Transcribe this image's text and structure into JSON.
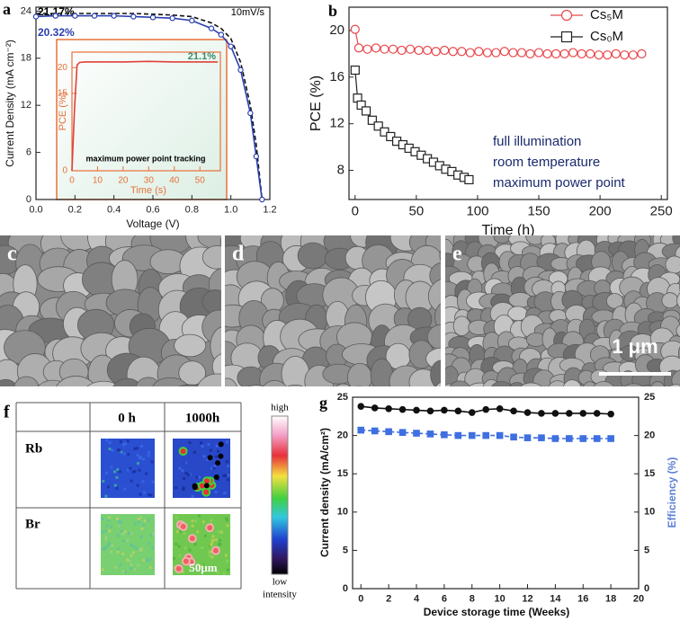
{
  "chart_data": [
    {
      "type": "line",
      "panel_label": "a",
      "xlabel": "Voltage (V)",
      "ylabel": "Current Density (mA cm⁻²)",
      "annotations": [
        "21.17%",
        "20.32%",
        "10mV/s"
      ],
      "x": [
        0,
        0.1,
        0.2,
        0.3,
        0.4,
        0.5,
        0.6,
        0.7,
        0.8,
        0.9,
        0.95,
        1.0,
        1.05,
        1.1,
        1.13,
        1.16
      ],
      "series": [
        {
          "color": "#111111",
          "dashed": true,
          "marker": "none",
          "values": [
            23.7,
            23.7,
            23.7,
            23.7,
            23.7,
            23.7,
            23.6,
            23.5,
            23.3,
            22.5,
            21.8,
            20.5,
            17.5,
            12,
            7,
            0
          ]
        },
        {
          "color": "#2a3fb0",
          "dashed": false,
          "marker": "circle",
          "open": true,
          "values": [
            23.3,
            23.4,
            23.4,
            23.4,
            23.4,
            23.3,
            23.2,
            23.1,
            22.8,
            21.8,
            21.0,
            19.5,
            16.5,
            11,
            5.5,
            0
          ]
        }
      ],
      "xlim": [
        0,
        1.2
      ],
      "xticks": [
        {
          "value": 0,
          "label": "0.0"
        },
        0.2,
        0.4,
        0.6,
        0.8,
        {
          "value": 1,
          "label": "1.0"
        },
        1.2
      ],
      "ylim": [
        0,
        24.5
      ],
      "yticks": [
        0,
        6,
        12,
        18,
        24
      ]
    },
    {
      "type": "line",
      "xlabel": "Time (s)",
      "ylabel": "PCE (%)",
      "axis_color": "#e8703a",
      "annotations": [
        "21.1%",
        "maximum power point tracking"
      ],
      "x": [
        0,
        1,
        2,
        3,
        5,
        10,
        20,
        30,
        40,
        50,
        57
      ],
      "series": [
        {
          "color": "#e0403a",
          "dashed": false,
          "marker": "none",
          "values": [
            0,
            12,
            20.5,
            21.0,
            21.1,
            21.1,
            21.1,
            21.2,
            21.1,
            21.1,
            21.1
          ]
        }
      ],
      "xlim": [
        0,
        58
      ],
      "xticks": [
        0,
        10,
        20,
        30,
        40,
        50
      ],
      "ylim": [
        0,
        23
      ],
      "yticks": [
        0,
        15,
        20
      ]
    },
    {
      "type": "line",
      "panel_label": "b",
      "xlabel": "Time (h)",
      "ylabel": "PCE (%)",
      "annotations": [
        "full illumination",
        "room temperature",
        "maximum power point"
      ],
      "series": [
        {
          "name": "Cs₅M",
          "color": "#e8474c",
          "dashed": false,
          "marker": "circle",
          "open": true,
          "x": [
            0,
            3,
            10,
            17,
            24,
            31,
            38,
            45,
            52,
            59,
            66,
            73,
            80,
            87,
            94,
            101,
            108,
            115,
            122,
            129,
            136,
            143,
            150,
            157,
            164,
            171,
            178,
            185,
            192,
            199,
            206,
            213,
            220,
            227,
            234
          ],
          "values": [
            20.1,
            18.5,
            18.4,
            18.5,
            18.4,
            18.4,
            18.3,
            18.4,
            18.3,
            18.3,
            18.2,
            18.3,
            18.2,
            18.2,
            18.1,
            18.2,
            18.1,
            18.1,
            18.2,
            18.1,
            18.1,
            18.0,
            18.1,
            18.0,
            18.0,
            18.0,
            18.1,
            18.0,
            18.0,
            17.9,
            17.9,
            18.0,
            17.9,
            17.9,
            18.0
          ]
        },
        {
          "name": "Cs₀M",
          "color": "#222222",
          "dashed": false,
          "marker": "square",
          "open": true,
          "x": [
            0,
            2,
            5,
            9,
            14,
            19,
            24,
            29,
            34,
            39,
            44,
            49,
            54,
            59,
            64,
            69,
            74,
            79,
            84,
            89,
            93
          ],
          "values": [
            16.6,
            14.2,
            13.6,
            13.1,
            12.3,
            11.8,
            11.3,
            10.9,
            10.5,
            10.2,
            9.9,
            9.6,
            9.3,
            9.0,
            8.7,
            8.4,
            8.1,
            7.9,
            7.6,
            7.4,
            7.2
          ]
        }
      ],
      "xlim": [
        -5,
        255
      ],
      "xticks": [
        0,
        50,
        100,
        150,
        200,
        250
      ],
      "ylim": [
        5.5,
        22
      ],
      "yticks": [
        8,
        12,
        16,
        20
      ],
      "legend": "top-right"
    },
    {
      "type": "line",
      "panel_label": "g",
      "xlabel": "Device storage time (Weeks)",
      "ylabel": "Current density (mA/cm²)",
      "y2label": "Efficiency (%)",
      "x": [
        0,
        1,
        2,
        3,
        4,
        5,
        6,
        7,
        8,
        9,
        10,
        11,
        12,
        13,
        14,
        15,
        16,
        17,
        18
      ],
      "series": [
        {
          "color": "#111111",
          "dashed": false,
          "marker": "circle",
          "open": false,
          "values": [
            23.8,
            23.6,
            23.5,
            23.4,
            23.3,
            23.2,
            23.3,
            23.2,
            23.0,
            23.4,
            23.5,
            23.2,
            23.0,
            22.9,
            22.9,
            22.9,
            22.9,
            22.9,
            22.8
          ]
        },
        {
          "color": "#3f6fe0",
          "dashed": true,
          "marker": "square",
          "open": false,
          "axis": "y2",
          "values": [
            20.7,
            20.6,
            20.5,
            20.4,
            20.3,
            20.2,
            20.1,
            20.0,
            20.0,
            20.0,
            20.0,
            19.8,
            19.7,
            19.7,
            19.6,
            19.6,
            19.6,
            19.6,
            19.6
          ]
        }
      ],
      "xlim": [
        -0.6,
        20
      ],
      "xticks": [
        0,
        2,
        4,
        6,
        8,
        10,
        12,
        14,
        16,
        18,
        20
      ],
      "ylim": [
        0,
        25
      ],
      "yticks": [
        0,
        5,
        10,
        15,
        20,
        25
      ],
      "y2lim": [
        0,
        25
      ],
      "y2ticks": [
        0,
        5,
        10,
        15,
        20,
        25
      ],
      "y2color": "#5b7fd6"
    }
  ],
  "images": {
    "labels": [
      "c",
      "d",
      "e"
    ],
    "scale_bar": "1 μm"
  },
  "maps": {
    "panel_label": "f",
    "columns": [
      "0 h",
      "1000h"
    ],
    "rows": [
      "Rb",
      "Br"
    ],
    "scale_bar": "50μm",
    "colorbar": {
      "high": "high",
      "low": "low",
      "caption": "intensity"
    }
  }
}
